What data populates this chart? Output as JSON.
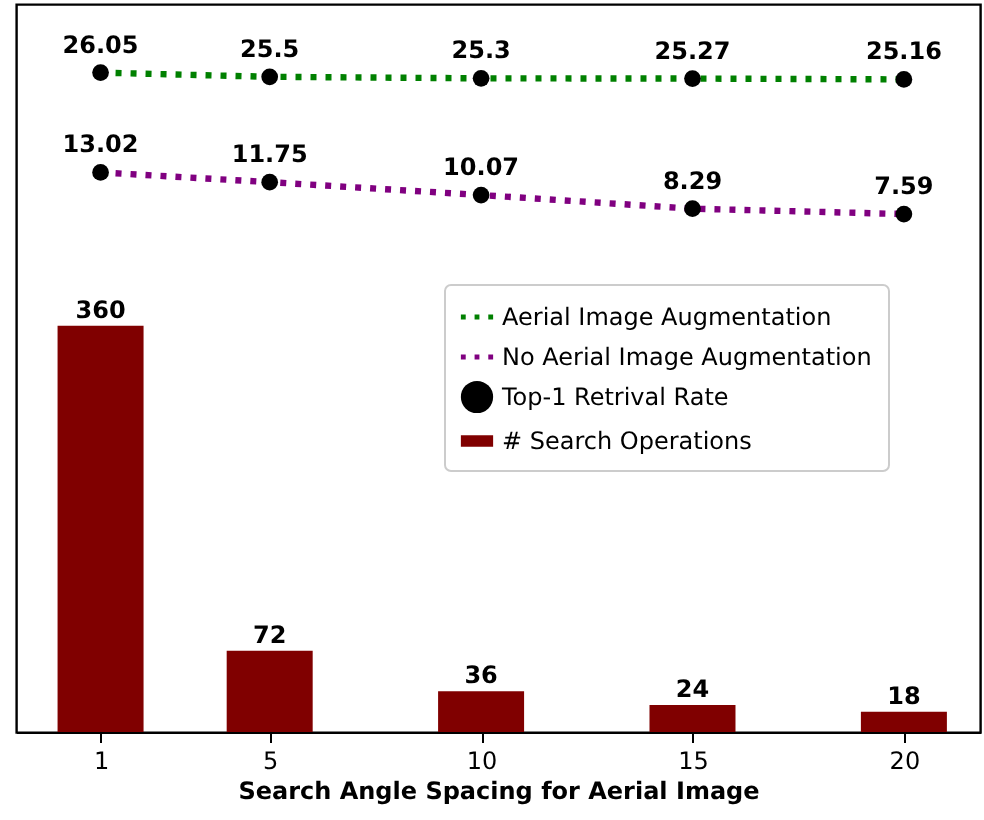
{
  "chart_data": {
    "type": "bar",
    "xlabel": "Search Angle Spacing for Aerial Image",
    "x": [
      1,
      5,
      10,
      15,
      20
    ],
    "xlim": [
      -1,
      21.8
    ],
    "xticks": [
      1,
      5,
      10,
      15,
      20
    ],
    "series": [
      {
        "name": "Aerial Image Augmentation",
        "type": "line",
        "color": "#008000",
        "line_style": "dotted",
        "axis": "y2",
        "values": [
          26.05,
          25.5,
          25.3,
          25.27,
          25.16
        ]
      },
      {
        "name": "No Aerial Image Augmentation",
        "type": "line",
        "color": "#800080",
        "line_style": "dotted",
        "axis": "y2",
        "values": [
          13.02,
          11.75,
          10.07,
          8.29,
          7.59
        ]
      },
      {
        "name": "Top-1 Retrival Rate",
        "type": "scatter",
        "marker": "circle",
        "color": "#000000",
        "axis": "y2",
        "x": [
          1,
          5,
          10,
          15,
          20,
          1,
          5,
          10,
          15,
          20
        ],
        "values": [
          26.05,
          25.5,
          25.3,
          25.27,
          25.16,
          13.02,
          11.75,
          10.07,
          8.29,
          7.59
        ],
        "value_labels": [
          "26.05",
          "25.5",
          "25.3",
          "25.27",
          "25.16",
          "13.02",
          "11.75",
          "10.07",
          "8.29",
          "7.59"
        ]
      },
      {
        "name": "# Search Operations",
        "color": "#800000",
        "values": [
          360,
          72,
          36,
          24,
          18
        ],
        "value_labels": [
          "360",
          "72",
          "36",
          "24",
          "18"
        ]
      }
    ],
    "ylim": [
      0,
      645
    ],
    "y2lim": [
      -60,
      35
    ],
    "tick_labels": "x",
    "legend": "right"
  }
}
